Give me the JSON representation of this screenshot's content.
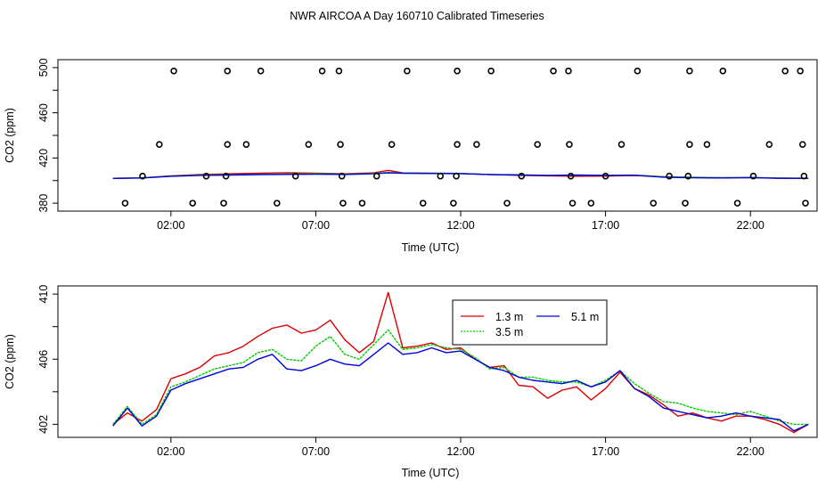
{
  "title": "NWR AIRCOA A  Day 160710  Calibrated Timeseries",
  "colors": {
    "h13": "#dd0000",
    "h35": "#00cc00",
    "h51": "#0000dd"
  },
  "chart_data": [
    {
      "type": "scatter",
      "title": "NWR AIRCOA A  Day 160710  Calibrated Timeseries",
      "xlabel": "Time (UTC)",
      "ylabel": "CO2 (ppm)",
      "xlim": [
        -1.9,
        24.3
      ],
      "ylim": [
        373,
        507
      ],
      "xticks": [
        2,
        7,
        12,
        17,
        22
      ],
      "xtick_labels": [
        "02:00",
        "07:00",
        "12:00",
        "17:00",
        "22:00"
      ],
      "yticks": [
        380,
        420,
        460,
        500
      ],
      "ytick_labels": [
        "380",
        "420",
        "460",
        "500"
      ],
      "ytick_minor": [
        400,
        440,
        480
      ],
      "calibration_points": [
        {
          "x": 0.42,
          "y": 380
        },
        {
          "x": 1.02,
          "y": 404
        },
        {
          "x": 1.6,
          "y": 432
        },
        {
          "x": 2.1,
          "y": 497
        },
        {
          "x": 2.75,
          "y": 380
        },
        {
          "x": 3.22,
          "y": 404
        },
        {
          "x": 3.82,
          "y": 380
        },
        {
          "x": 3.9,
          "y": 404
        },
        {
          "x": 3.95,
          "y": 432
        },
        {
          "x": 3.95,
          "y": 497
        },
        {
          "x": 4.6,
          "y": 432
        },
        {
          "x": 5.1,
          "y": 497
        },
        {
          "x": 5.66,
          "y": 380
        },
        {
          "x": 6.3,
          "y": 404
        },
        {
          "x": 6.75,
          "y": 432
        },
        {
          "x": 7.22,
          "y": 497
        },
        {
          "x": 7.8,
          "y": 497
        },
        {
          "x": 7.85,
          "y": 432
        },
        {
          "x": 7.9,
          "y": 404
        },
        {
          "x": 7.94,
          "y": 380
        },
        {
          "x": 8.6,
          "y": 380
        },
        {
          "x": 9.1,
          "y": 404
        },
        {
          "x": 9.62,
          "y": 432
        },
        {
          "x": 10.15,
          "y": 497
        },
        {
          "x": 10.7,
          "y": 380
        },
        {
          "x": 11.3,
          "y": 404
        },
        {
          "x": 11.75,
          "y": 380
        },
        {
          "x": 11.85,
          "y": 404
        },
        {
          "x": 11.88,
          "y": 432
        },
        {
          "x": 11.88,
          "y": 497
        },
        {
          "x": 12.55,
          "y": 432
        },
        {
          "x": 13.05,
          "y": 497
        },
        {
          "x": 13.6,
          "y": 380
        },
        {
          "x": 14.1,
          "y": 404
        },
        {
          "x": 14.65,
          "y": 432
        },
        {
          "x": 15.2,
          "y": 497
        },
        {
          "x": 15.72,
          "y": 497
        },
        {
          "x": 15.75,
          "y": 432
        },
        {
          "x": 15.8,
          "y": 404
        },
        {
          "x": 15.86,
          "y": 380
        },
        {
          "x": 16.5,
          "y": 380
        },
        {
          "x": 17.0,
          "y": 404
        },
        {
          "x": 17.55,
          "y": 432
        },
        {
          "x": 18.1,
          "y": 497
        },
        {
          "x": 18.65,
          "y": 380
        },
        {
          "x": 19.2,
          "y": 404
        },
        {
          "x": 19.75,
          "y": 380
        },
        {
          "x": 19.85,
          "y": 404
        },
        {
          "x": 19.9,
          "y": 432
        },
        {
          "x": 19.9,
          "y": 497
        },
        {
          "x": 20.5,
          "y": 432
        },
        {
          "x": 21.05,
          "y": 497
        },
        {
          "x": 21.55,
          "y": 380
        },
        {
          "x": 22.1,
          "y": 404
        },
        {
          "x": 22.65,
          "y": 432
        },
        {
          "x": 23.2,
          "y": 497
        },
        {
          "x": 23.72,
          "y": 497
        },
        {
          "x": 23.8,
          "y": 432
        },
        {
          "x": 23.85,
          "y": 404
        },
        {
          "x": 23.9,
          "y": 380
        }
      ],
      "series": [
        {
          "name": "1.3 m",
          "color": "#dd0000",
          "x": [
            0.0,
            1.0,
            2.0,
            3.0,
            4.0,
            5.0,
            6.0,
            7.0,
            8.0,
            9.0,
            9.5,
            10.0,
            11.0,
            12.0,
            13.0,
            14.0,
            15.0,
            16.0,
            17.0,
            18.0,
            19.0,
            20.0,
            21.0,
            22.0,
            23.0,
            24.0
          ],
          "values": [
            402.0,
            402.4,
            404.2,
            405.3,
            406.0,
            406.6,
            407.0,
            406.5,
            406.0,
            406.8,
            409.0,
            406.8,
            406.5,
            406.2,
            405.4,
            404.7,
            404.2,
            403.8,
            404.0,
            404.5,
            403.4,
            402.7,
            402.5,
            402.5,
            402.2,
            402.0
          ]
        },
        {
          "name": "3.5 m",
          "color": "#00cc00",
          "x": [
            0.0,
            1.0,
            2.0,
            3.0,
            4.0,
            5.0,
            6.0,
            7.0,
            8.0,
            9.0,
            9.5,
            10.0,
            11.0,
            12.0,
            13.0,
            14.0,
            15.0,
            16.0,
            17.0,
            18.0,
            19.0,
            20.0,
            21.0,
            22.0,
            23.0,
            24.0
          ],
          "values": [
            402.0,
            402.5,
            404.0,
            405.0,
            405.2,
            405.6,
            405.9,
            406.3,
            405.8,
            406.4,
            407.3,
            406.7,
            406.6,
            406.4,
            405.3,
            405.2,
            404.7,
            404.5,
            404.7,
            404.9,
            403.4,
            403.0,
            402.6,
            402.7,
            402.3,
            402.1
          ]
        },
        {
          "name": "5.1 m",
          "color": "#0000dd",
          "x": [
            0.0,
            1.0,
            2.0,
            3.0,
            4.0,
            5.0,
            6.0,
            7.0,
            8.0,
            9.0,
            9.5,
            10.0,
            11.0,
            12.0,
            13.0,
            14.0,
            15.0,
            16.0,
            17.0,
            18.0,
            19.0,
            20.0,
            21.0,
            22.0,
            23.0,
            24.0
          ],
          "values": [
            401.9,
            402.3,
            403.8,
            404.6,
            404.9,
            405.3,
            405.5,
            405.6,
            405.4,
            406.0,
            406.8,
            406.5,
            406.3,
            406.2,
            405.4,
            404.9,
            404.6,
            404.9,
            404.6,
            404.8,
            403.0,
            402.5,
            402.3,
            402.7,
            402.0,
            402.0
          ]
        }
      ]
    },
    {
      "type": "line",
      "xlabel": "Time (UTC)",
      "ylabel": "CO2 (ppm)",
      "xlim": [
        -1.9,
        24.3
      ],
      "ylim": [
        401.2,
        410.5
      ],
      "xticks": [
        2,
        7,
        12,
        17,
        22
      ],
      "xtick_labels": [
        "02:00",
        "07:00",
        "12:00",
        "17:00",
        "22:00"
      ],
      "yticks": [
        402,
        406,
        410
      ],
      "ytick_labels": [
        "402",
        "406",
        "410"
      ],
      "ytick_minor": [
        404,
        408
      ],
      "legend": {
        "position": "top-center",
        "entries": [
          "1.3 m",
          "5.1 m",
          "3.5 m"
        ]
      },
      "series": [
        {
          "name": "1.3 m",
          "color": "#dd0000",
          "x": [
            0.0,
            0.5,
            1.0,
            1.5,
            2.0,
            2.5,
            3.0,
            3.5,
            4.0,
            4.5,
            5.0,
            5.5,
            6.0,
            6.5,
            7.0,
            7.5,
            8.0,
            8.5,
            9.0,
            9.5,
            10.0,
            10.5,
            11.0,
            11.5,
            12.0,
            12.5,
            13.0,
            13.5,
            14.0,
            14.5,
            15.0,
            15.5,
            16.0,
            16.5,
            17.0,
            17.5,
            18.0,
            18.5,
            19.0,
            19.5,
            20.0,
            20.5,
            21.0,
            21.5,
            22.0,
            22.5,
            23.0,
            23.5,
            24.0
          ],
          "values": [
            402.0,
            402.7,
            402.2,
            402.9,
            404.8,
            405.1,
            405.5,
            406.2,
            406.4,
            406.8,
            407.4,
            407.9,
            408.1,
            407.6,
            407.8,
            408.4,
            407.2,
            406.4,
            407.1,
            410.1,
            406.7,
            406.8,
            407.0,
            406.6,
            406.7,
            406.0,
            405.5,
            405.6,
            404.4,
            404.3,
            403.6,
            404.1,
            404.3,
            403.5,
            404.2,
            405.2,
            404.2,
            403.8,
            403.2,
            402.5,
            402.7,
            402.4,
            402.2,
            402.5,
            402.5,
            402.3,
            402.0,
            401.5,
            402.0
          ]
        },
        {
          "name": "3.5 m",
          "color": "#00cc00",
          "x": [
            0.0,
            0.5,
            1.0,
            1.5,
            2.0,
            2.5,
            3.0,
            3.5,
            4.0,
            4.5,
            5.0,
            5.5,
            6.0,
            6.5,
            7.0,
            7.5,
            8.0,
            8.5,
            9.0,
            9.5,
            10.0,
            10.5,
            11.0,
            11.5,
            12.0,
            12.5,
            13.0,
            13.5,
            14.0,
            14.5,
            15.0,
            15.5,
            16.0,
            16.5,
            17.0,
            17.5,
            18.0,
            18.5,
            19.0,
            19.5,
            20.0,
            20.5,
            21.0,
            21.5,
            22.0,
            22.5,
            23.0,
            23.5,
            24.0
          ],
          "values": [
            402.0,
            403.1,
            402.0,
            402.6,
            404.3,
            404.6,
            405.0,
            405.4,
            405.6,
            405.8,
            406.4,
            406.6,
            406.0,
            405.9,
            406.8,
            407.4,
            406.3,
            406.0,
            406.9,
            407.8,
            406.6,
            406.7,
            406.9,
            406.7,
            406.6,
            406.1,
            405.4,
            405.5,
            404.9,
            404.9,
            404.7,
            404.6,
            404.6,
            404.3,
            404.7,
            405.3,
            404.5,
            403.9,
            403.4,
            403.3,
            403.0,
            402.8,
            402.7,
            402.6,
            402.8,
            402.5,
            402.2,
            402.0,
            402.0
          ]
        },
        {
          "name": "5.1 m",
          "color": "#0000dd",
          "x": [
            0.0,
            0.5,
            1.0,
            1.5,
            2.0,
            2.5,
            3.0,
            3.5,
            4.0,
            4.5,
            5.0,
            5.5,
            6.0,
            6.5,
            7.0,
            7.5,
            8.0,
            8.5,
            9.0,
            9.5,
            10.0,
            10.5,
            11.0,
            11.5,
            12.0,
            12.5,
            13.0,
            13.5,
            14.0,
            14.5,
            15.0,
            15.5,
            16.0,
            16.5,
            17.0,
            17.5,
            18.0,
            18.5,
            19.0,
            19.5,
            20.0,
            20.5,
            21.0,
            21.5,
            22.0,
            22.5,
            23.0,
            23.5,
            24.0
          ],
          "values": [
            401.9,
            403.0,
            401.9,
            402.5,
            404.1,
            404.5,
            404.8,
            405.1,
            405.4,
            405.5,
            406.0,
            406.3,
            405.4,
            405.3,
            405.6,
            406.0,
            405.7,
            405.6,
            406.3,
            407.0,
            406.3,
            406.4,
            406.7,
            406.4,
            406.5,
            406.0,
            405.5,
            405.3,
            404.9,
            404.7,
            404.6,
            404.5,
            404.7,
            404.3,
            404.6,
            405.3,
            404.2,
            403.7,
            403.0,
            402.8,
            402.6,
            402.4,
            402.5,
            402.7,
            402.5,
            402.4,
            402.3,
            401.6,
            402.0
          ]
        }
      ]
    }
  ]
}
